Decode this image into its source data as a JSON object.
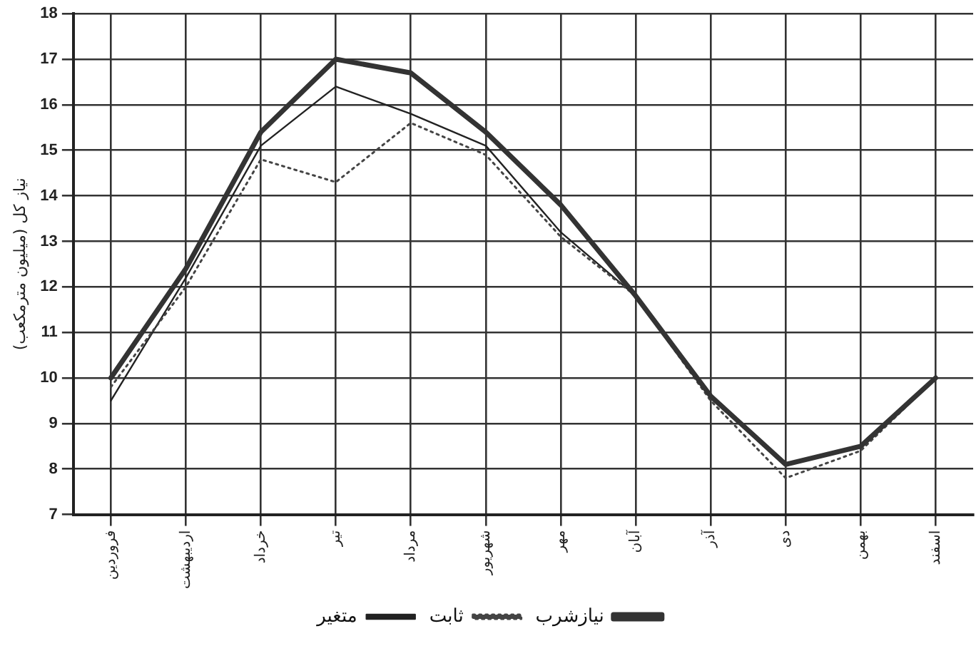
{
  "chart_data": {
    "type": "line",
    "ylabel": "نیاز کل (میلیون مترمکعب)",
    "categories": [
      "فروردین",
      "اردیبهشت",
      "خرداد",
      "تیر",
      "مرداد",
      "شهریور",
      "مهر",
      "آبان",
      "آذر",
      "دی",
      "بهمن",
      "اسفند"
    ],
    "series": [
      {
        "name": "نیازشرب",
        "color": "#333333",
        "line_style": "solid",
        "values": [
          10.0,
          12.4,
          15.4,
          17.0,
          16.7,
          15.4,
          13.8,
          11.8,
          9.6,
          8.1,
          8.5,
          10.0
        ]
      },
      {
        "name": "ثابت",
        "color": "#444444",
        "line_style": "dotted",
        "values": [
          9.8,
          12.0,
          14.8,
          14.3,
          15.6,
          14.9,
          13.1,
          11.8,
          9.5,
          7.8,
          8.4,
          10.0
        ]
      },
      {
        "name": "متغیر",
        "color": "#222222",
        "line_style": "solid",
        "values": [
          9.5,
          12.2,
          15.1,
          16.4,
          15.8,
          15.1,
          13.2,
          11.8,
          9.6,
          8.1,
          8.5,
          10.0
        ]
      }
    ],
    "ylim": [
      7,
      18
    ],
    "yticks": [
      7,
      8,
      9,
      10,
      11,
      12,
      13,
      14,
      15,
      16,
      17,
      18
    ],
    "grid": true,
    "legend": "bottom",
    "marker": "none"
  }
}
